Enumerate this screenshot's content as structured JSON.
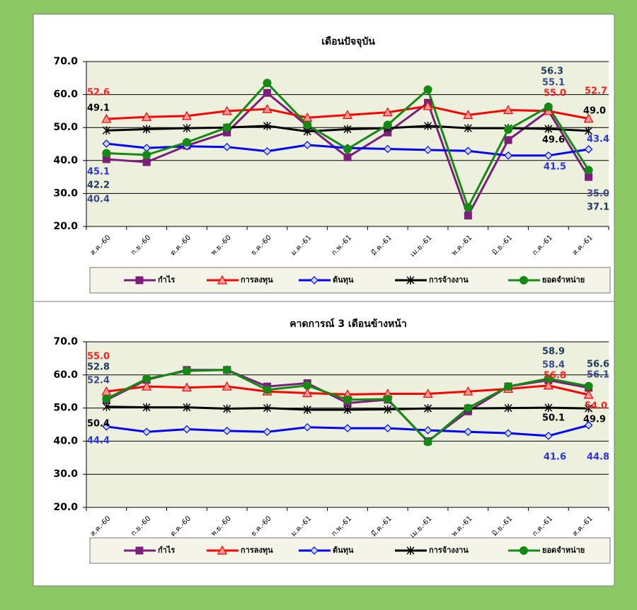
{
  "chart_data": [
    {
      "type": "line",
      "title": "เดือนปัจจุบัน",
      "categories": [
        "ส.ค.-60",
        "ก.ย.-60",
        "ต.ค.-60",
        "พ.ย.-60",
        "ธ.ค.-60",
        "ม.ค.-61",
        "ก.พ.-61",
        "มี.ค.-61",
        "เม.ย.-61",
        "พ.ค.-61",
        "มิ.ย.-61",
        "ก.ค.-61",
        "ส.ค.-61"
      ],
      "ylim": [
        20,
        70
      ],
      "yticks": [
        {
          "value": 20,
          "label": "20.0"
        },
        {
          "value": 30,
          "label": "30.0"
        },
        {
          "value": 40,
          "label": "40.0"
        },
        {
          "value": 50,
          "label": "50.0"
        },
        {
          "value": 60,
          "label": "60.0"
        },
        {
          "value": 70,
          "label": "70.0"
        }
      ],
      "grid": true,
      "legend": "bottom",
      "series": [
        {
          "name": "กำไร",
          "color": "#7b1f7b",
          "marker": "square",
          "label_color": "#3b4c8c",
          "values": [
            40.4,
            39.5,
            44.5,
            48.5,
            60.5,
            50.5,
            41,
            48.5,
            57.5,
            23.3,
            46.2,
            55.1,
            35.0
          ],
          "value_labels": [
            "40.4",
            null,
            null,
            null,
            null,
            null,
            null,
            null,
            null,
            null,
            null,
            "55.1",
            "35.0"
          ]
        },
        {
          "name": "การลงทุน",
          "color": "#ff0000",
          "marker": "triangle",
          "label_color": "#ff2020",
          "values": [
            52.6,
            53.2,
            53.5,
            55,
            55.6,
            53,
            53.8,
            54.6,
            56.5,
            53.8,
            55.3,
            55.0,
            52.7
          ],
          "value_labels": [
            "52.6",
            null,
            null,
            null,
            null,
            null,
            null,
            null,
            null,
            null,
            null,
            "55.0",
            "52.7"
          ]
        },
        {
          "name": "ต้นทุน",
          "color": "#0000ff",
          "marker": "diamond",
          "label_color": "#2b34e0",
          "values": [
            45.1,
            43.8,
            44.3,
            44.1,
            42.8,
            44.7,
            43.8,
            43.5,
            43.2,
            42.9,
            41.5,
            41.5,
            43.4
          ],
          "value_labels": [
            "45.1",
            null,
            null,
            null,
            null,
            null,
            null,
            null,
            null,
            null,
            null,
            "41.5",
            "43.4"
          ]
        },
        {
          "name": "การจ้างงาน",
          "color": "#000000",
          "marker": "star",
          "label_color": "#000000",
          "values": [
            49.1,
            49.5,
            49.8,
            50,
            50.5,
            48.8,
            49.5,
            49.8,
            50.5,
            49.8,
            49.8,
            49.6,
            49.0
          ],
          "value_labels": [
            "49.1",
            null,
            null,
            null,
            null,
            null,
            null,
            null,
            null,
            null,
            null,
            "49.6",
            "49.0"
          ]
        },
        {
          "name": "ยอดจำหน่าย",
          "color": "#138a13",
          "marker": "circle",
          "label_color": "#1f3a60",
          "values": [
            42.2,
            41.7,
            45.5,
            50,
            63.5,
            50.8,
            43.5,
            50.8,
            61.5,
            25.8,
            49.4,
            56.3,
            37.1
          ],
          "value_labels": [
            "42.2",
            null,
            null,
            null,
            null,
            null,
            null,
            null,
            null,
            null,
            null,
            "56.3",
            "37.1"
          ]
        }
      ]
    },
    {
      "type": "line",
      "title": "คาดการณ์ 3 เดือนข้างหน้า",
      "categories": [
        "ส.ค.-60",
        "ก.ย.-60",
        "ต.ค.-60",
        "พ.ย.-60",
        "ธ.ค.-60",
        "ม.ค.-61",
        "ก.พ.-61",
        "มี.ค.-61",
        "เม.ย.-61",
        "พ.ค.-61",
        "มิ.ย.-61",
        "ก.ค.-61",
        "ส.ค.-61"
      ],
      "ylim": [
        20,
        70
      ],
      "yticks": [
        {
          "value": 20,
          "label": "20.0"
        },
        {
          "value": 30,
          "label": "30.0"
        },
        {
          "value": 40,
          "label": "40.0"
        },
        {
          "value": 50,
          "label": "50.0"
        },
        {
          "value": 60,
          "label": "60.0"
        },
        {
          "value": 70,
          "label": "70.0"
        }
      ],
      "grid": true,
      "legend": "bottom",
      "series": [
        {
          "name": "กำไร",
          "color": "#7b1f7b",
          "marker": "square",
          "label_color": "#3b4c8c",
          "values": [
            52.4,
            58.5,
            61.5,
            61.5,
            56.5,
            57.5,
            51.5,
            52.5,
            40,
            49,
            56.5,
            58.4,
            56.1
          ],
          "value_labels": [
            "52.4",
            null,
            null,
            null,
            null,
            null,
            null,
            null,
            null,
            null,
            null,
            "58.4",
            "56.1"
          ]
        },
        {
          "name": "การลงทุน",
          "color": "#ff0000",
          "marker": "triangle",
          "label_color": "#ff2020",
          "values": [
            55.0,
            56.5,
            56.2,
            56.5,
            55,
            54.5,
            54.1,
            54.3,
            54.3,
            55,
            55.8,
            56.8,
            54.0
          ],
          "value_labels": [
            "55.0",
            null,
            null,
            null,
            null,
            null,
            null,
            null,
            null,
            null,
            null,
            "56.8",
            "54.0"
          ]
        },
        {
          "name": "ต้นทุน",
          "color": "#0000ff",
          "marker": "diamond",
          "label_color": "#2b34e0",
          "values": [
            44.4,
            42.8,
            43.6,
            43.1,
            42.8,
            44.2,
            43.9,
            43.9,
            43.3,
            42.8,
            42.4,
            41.6,
            44.8
          ],
          "value_labels": [
            "44.4",
            null,
            null,
            null,
            null,
            null,
            null,
            null,
            null,
            null,
            null,
            "41.6",
            "44.8"
          ]
        },
        {
          "name": "การจ้างงาน",
          "color": "#000000",
          "marker": "star",
          "label_color": "#000000",
          "values": [
            50.4,
            50.2,
            50.2,
            49.8,
            50,
            49.5,
            49.5,
            49.6,
            49.9,
            49.9,
            50,
            50.1,
            49.9
          ],
          "value_labels": [
            "50.4",
            null,
            null,
            null,
            null,
            null,
            null,
            null,
            null,
            null,
            null,
            "50.1",
            "49.9"
          ]
        },
        {
          "name": "ยอดจำหน่าย",
          "color": "#138a13",
          "marker": "circle",
          "label_color": "#1f3a60",
          "values": [
            52.8,
            58.8,
            61.2,
            61.5,
            55.5,
            56.8,
            52.5,
            52.7,
            39.8,
            50,
            56.5,
            58.9,
            56.6
          ],
          "value_labels": [
            "52.8",
            null,
            null,
            null,
            null,
            null,
            null,
            null,
            null,
            null,
            null,
            "58.9",
            "56.6"
          ]
        }
      ]
    }
  ]
}
